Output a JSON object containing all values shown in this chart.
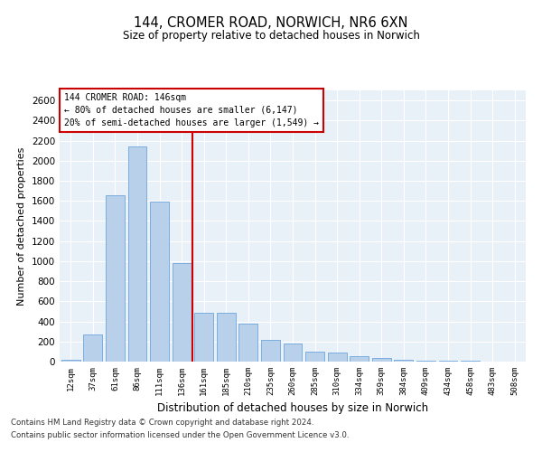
{
  "title_line1": "144, CROMER ROAD, NORWICH, NR6 6XN",
  "title_line2": "Size of property relative to detached houses in Norwich",
  "xlabel": "Distribution of detached houses by size in Norwich",
  "ylabel": "Number of detached properties",
  "categories": [
    "12sqm",
    "37sqm",
    "61sqm",
    "86sqm",
    "111sqm",
    "136sqm",
    "161sqm",
    "185sqm",
    "210sqm",
    "235sqm",
    "260sqm",
    "285sqm",
    "310sqm",
    "334sqm",
    "359sqm",
    "384sqm",
    "409sqm",
    "434sqm",
    "458sqm",
    "483sqm",
    "508sqm"
  ],
  "values": [
    18,
    270,
    1660,
    2140,
    1590,
    980,
    490,
    490,
    380,
    220,
    180,
    95,
    90,
    55,
    35,
    18,
    12,
    8,
    6,
    3,
    2
  ],
  "bar_color": "#b8d0ea",
  "bar_edge_color": "#7aade0",
  "vline_color": "#cc0000",
  "annotation_title": "144 CROMER ROAD: 146sqm",
  "annotation_line1": "← 80% of detached houses are smaller (6,147)",
  "annotation_line2": "20% of semi-detached houses are larger (1,549) →",
  "annotation_box_color": "#cc0000",
  "ylim": [
    0,
    2700
  ],
  "yticks": [
    0,
    200,
    400,
    600,
    800,
    1000,
    1200,
    1400,
    1600,
    1800,
    2000,
    2200,
    2400,
    2600
  ],
  "footer_line1": "Contains HM Land Registry data © Crown copyright and database right 2024.",
  "footer_line2": "Contains public sector information licensed under the Open Government Licence v3.0.",
  "background_color": "#e8f0f8",
  "bar_width": 0.85,
  "vline_x": 5.5
}
